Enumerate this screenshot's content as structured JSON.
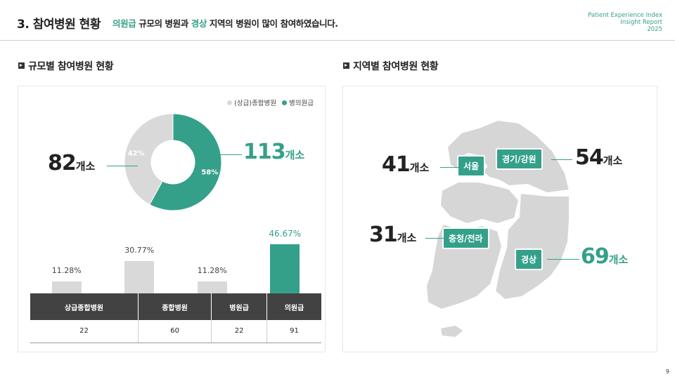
{
  "header": {
    "title": "3. 참여병원 현황",
    "subtitle_accent1": "의원급",
    "subtitle_part1": " 규모의 병원과 ",
    "subtitle_accent2": "경상",
    "subtitle_part2": " 지역의 병원이 많이 참여하였습니다.",
    "brand_line1": "Patient Experience Index",
    "brand_line2": "Insight Report",
    "brand_line3": "2025"
  },
  "left_section": {
    "title": "규모별 참여병원 현황",
    "legend": [
      {
        "label": "(상급)종합병원",
        "color": "#d9d9d9"
      },
      {
        "label": "병의원급",
        "color": "#35a08a"
      }
    ],
    "left_count": "82",
    "right_count": "113",
    "unit": "개소"
  },
  "right_section": {
    "title": "지역별 참여병원 현황",
    "unit": "개소",
    "regions": [
      {
        "name": "서울",
        "count": "41"
      },
      {
        "name": "경기/강원",
        "count": "54"
      },
      {
        "name": "충청/전라",
        "count": "31"
      },
      {
        "name": "경상",
        "count": "69"
      }
    ]
  },
  "chart_data": [
    {
      "type": "pie",
      "labels": [
        "(상급)종합병원",
        "병의원급"
      ],
      "values": [
        42,
        58
      ],
      "value_labels": [
        "42%",
        "58%"
      ],
      "colors": [
        "#d9d9d9",
        "#35a08a"
      ],
      "donut": true
    },
    {
      "type": "bar",
      "categories": [
        "상급종합병원",
        "종합병원",
        "병원급",
        "의원급"
      ],
      "values": [
        11.28,
        30.77,
        11.28,
        46.67
      ],
      "value_labels": [
        "11.28%",
        "30.77%",
        "11.28%",
        "46.67%"
      ],
      "colors": [
        "#d9d9d9",
        "#d9d9d9",
        "#d9d9d9",
        "#35a08a"
      ],
      "ylim": [
        0,
        50
      ]
    },
    {
      "type": "table",
      "columns": [
        "상급종합병원",
        "종합병원",
        "병원급",
        "의원급"
      ],
      "rows": [
        [
          "22",
          "60",
          "22",
          "91"
        ]
      ]
    }
  ],
  "page_number": "9"
}
